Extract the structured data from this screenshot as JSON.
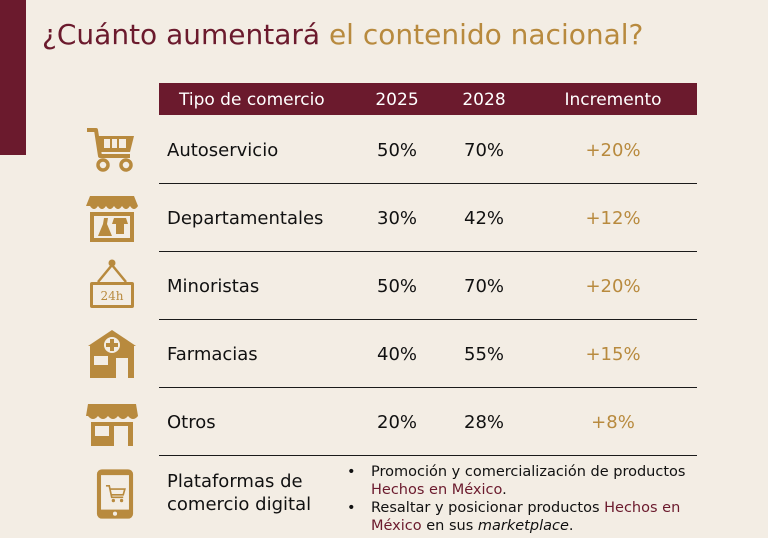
{
  "title": {
    "main": "¿Cuánto aumentará",
    "accent": "el contenido nacional?"
  },
  "table": {
    "headers": {
      "type": "Tipo de comercio",
      "y2025": "2025",
      "y2028": "2028",
      "increase": "Incremento"
    },
    "rows": [
      {
        "icon": "shopping-cart-icon",
        "type": "Autoservicio",
        "y2025": "50%",
        "y2028": "70%",
        "increase": "+20%"
      },
      {
        "icon": "department-store-icon",
        "type": "Departamentales",
        "y2025": "30%",
        "y2028": "42%",
        "increase": "+12%"
      },
      {
        "icon": "24h-store-sign-icon",
        "type": "Minoristas",
        "y2025": "50%",
        "y2028": "70%",
        "increase": "+20%",
        "icon_text": "24h"
      },
      {
        "icon": "pharmacy-icon",
        "type": "Farmacias",
        "y2025": "40%",
        "y2028": "55%",
        "increase": "+15%"
      },
      {
        "icon": "storefront-icon",
        "type": "Otros",
        "y2025": "20%",
        "y2028": "28%",
        "increase": "+8%"
      }
    ],
    "digital": {
      "icon": "mobile-shopping-icon",
      "type_line1": "Plataformas de",
      "type_line2": "comercio digital",
      "bullet1_a": "Promoción y comercialización de productos",
      "bullet1_b": "Hechos en México",
      "bullet1_c": ".",
      "bullet2_a": "Resaltar y posicionar productos ",
      "bullet2_b": "Hechos en México",
      "bullet2_c": " en sus ",
      "bullet2_d": "marketplace",
      "bullet2_e": "."
    }
  },
  "colors": {
    "maroon": "#6b1a2d",
    "gold": "#b88a3e",
    "background": "#f3ede4"
  }
}
